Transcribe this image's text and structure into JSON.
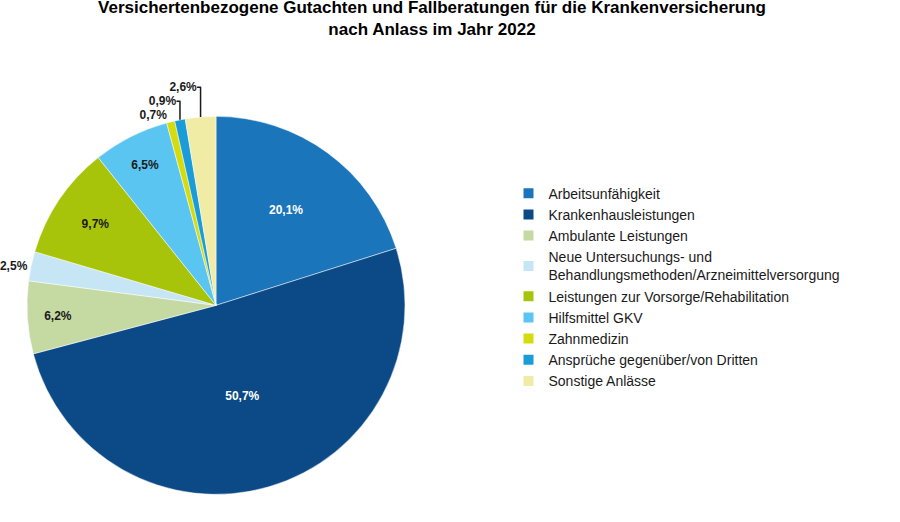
{
  "chart_data": {
    "type": "pie",
    "title": [
      "Versichertenbezogene Gutachten und Fallberatungen für die Krankenversicherung",
      "nach Anlass im Jahr 2022"
    ],
    "categories": [
      "Arbeitsunfähigkeit",
      "Krankenhausleistungen",
      "Ambulante Leistungen",
      "Neue Untersuchungs- und Behandlungsmethoden/Arzneimittelversorgung",
      "Leistungen zur Vorsorge/Rehabilitation",
      "Hilfsmittel GKV",
      "Zahnmedizin",
      "Ansprüche gegenüber/von Dritten",
      "Sonstige Anlässe"
    ],
    "values": [
      20.1,
      50.7,
      6.2,
      2.5,
      9.7,
      6.5,
      0.7,
      0.9,
      2.6
    ],
    "value_labels": [
      "20,1%",
      "50,7%",
      "6,2%",
      "2,5%",
      "9,7%",
      "6,5%",
      "0,7%",
      "0,9%",
      "2,6%"
    ],
    "colors": [
      "#1B75BB",
      "#0B4A86",
      "#C5D9A3",
      "#C6E5F5",
      "#A8C40A",
      "#5BC5F2",
      "#D4DC10",
      "#1A9CD8",
      "#F0EBA5"
    ],
    "data_labels": true,
    "legend": "right"
  }
}
